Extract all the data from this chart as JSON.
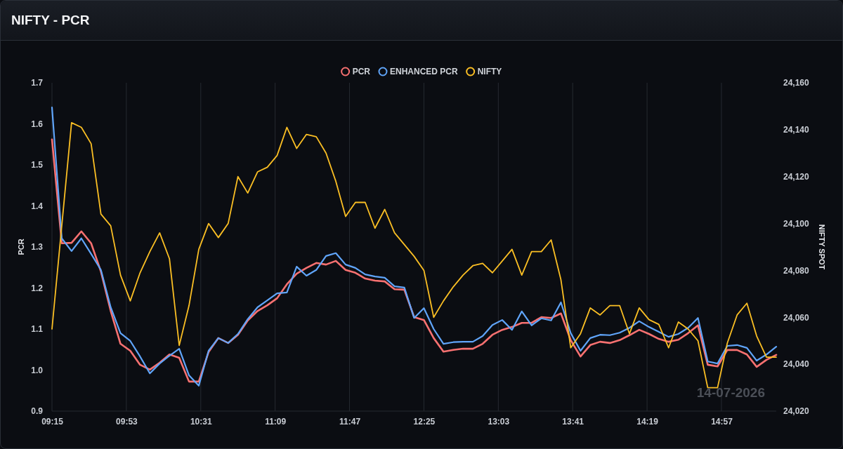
{
  "chart_data": {
    "type": "line",
    "title": "NIFTY - PCR",
    "ylabel": "PCR",
    "y2label": "NIFTY SPOT",
    "legend": "top",
    "grid": "x",
    "marker": "none",
    "line_style": "solid",
    "annotations": [
      "14-07-2026"
    ],
    "x": [
      9.25,
      9.3333,
      9.4167,
      9.5,
      9.5833,
      9.6667,
      9.75,
      9.8333,
      9.9167,
      10,
      10.0833,
      10.1667,
      10.25,
      10.3333,
      10.4167,
      10.5,
      10.5833,
      10.6667,
      10.75,
      10.8333,
      10.9167,
      11,
      11.0833,
      11.1667,
      11.25,
      11.3333,
      11.4167,
      11.5,
      11.5833,
      11.6667,
      11.75,
      11.8333,
      11.9167,
      12,
      12.0833,
      12.1667,
      12.25,
      12.3333,
      12.4167,
      12.5,
      12.5833,
      12.6667,
      12.75,
      12.8333,
      12.9167,
      13,
      13.0833,
      13.1667,
      13.25,
      13.3333,
      13.4167,
      13.5,
      13.5833,
      13.6667,
      13.75,
      13.8333,
      13.9167,
      14,
      14.0833,
      14.1667,
      14.25,
      14.3333,
      14.4167,
      14.5,
      14.5833,
      14.6667,
      14.75,
      14.8333,
      14.9167,
      15,
      15.0833,
      15.1667,
      15.25,
      15.3333,
      15.4167
    ],
    "xlim": [
      9.25,
      15.4167
    ],
    "xticks": [
      {
        "value": 9.25,
        "label": "09:15"
      },
      {
        "value": 9.8833,
        "label": "09:53"
      },
      {
        "value": 10.5167,
        "label": "10:31"
      },
      {
        "value": 11.15,
        "label": "11:09"
      },
      {
        "value": 11.7833,
        "label": "11:47"
      },
      {
        "value": 12.4167,
        "label": "12:25"
      },
      {
        "value": 13.05,
        "label": "13:03"
      },
      {
        "value": 13.6833,
        "label": "13:41"
      },
      {
        "value": 14.3167,
        "label": "14:19"
      },
      {
        "value": 14.95,
        "label": "14:57"
      }
    ],
    "ylim": [
      0.9,
      1.7
    ],
    "yticks": [
      0.9,
      {
        "value": 1,
        "label": "1.0"
      },
      1.1,
      1.2,
      1.3,
      1.4,
      1.5,
      1.6,
      1.7
    ],
    "y2lim": [
      24020,
      24160
    ],
    "y2ticks": [
      {
        "value": 24020,
        "label": "24,020"
      },
      {
        "value": 24040,
        "label": "24,040"
      },
      {
        "value": 24060,
        "label": "24,060"
      },
      {
        "value": 24080,
        "label": "24,080"
      },
      {
        "value": 24100,
        "label": "24,100"
      },
      {
        "value": 24120,
        "label": "24,120"
      },
      {
        "value": 24140,
        "label": "24,140"
      },
      {
        "value": 24160,
        "label": "24,160"
      }
    ],
    "series": [
      {
        "name": "PCR",
        "color": "#f87171",
        "values": [
          1.562,
          1.309,
          1.31,
          1.338,
          1.309,
          1.24,
          1.144,
          1.064,
          1.047,
          1.013,
          1.001,
          1.018,
          1.038,
          1.03,
          0.972,
          0.972,
          1.044,
          1.078,
          1.066,
          1.086,
          1.121,
          1.144,
          1.158,
          1.175,
          1.209,
          1.235,
          1.249,
          1.261,
          1.257,
          1.266,
          1.244,
          1.237,
          1.223,
          1.218,
          1.216,
          1.197,
          1.196,
          1.129,
          1.122,
          1.078,
          1.045,
          1.049,
          1.052,
          1.052,
          1.064,
          1.086,
          1.098,
          1.105,
          1.115,
          1.115,
          1.129,
          1.127,
          1.138,
          1.073,
          1.033,
          1.061,
          1.069,
          1.066,
          1.073,
          1.085,
          1.098,
          1.088,
          1.076,
          1.069,
          1.074,
          1.09,
          1.109,
          1.013,
          1.009,
          1.049,
          1.049,
          1.038,
          1.008,
          1.025,
          1.037
        ]
      },
      {
        "name": "ENHANCED PCR",
        "color": "#60a5fa",
        "values": [
          1.64,
          1.321,
          1.29,
          1.321,
          1.283,
          1.244,
          1.153,
          1.09,
          1.071,
          1.033,
          0.992,
          1.016,
          1.035,
          1.052,
          0.987,
          0.962,
          1.047,
          1.078,
          1.066,
          1.088,
          1.124,
          1.153,
          1.17,
          1.187,
          1.189,
          1.252,
          1.23,
          1.244,
          1.278,
          1.285,
          1.257,
          1.249,
          1.233,
          1.228,
          1.225,
          1.204,
          1.201,
          1.127,
          1.151,
          1.1,
          1.064,
          1.068,
          1.069,
          1.069,
          1.083,
          1.11,
          1.122,
          1.098,
          1.143,
          1.109,
          1.126,
          1.121,
          1.165,
          1.09,
          1.047,
          1.078,
          1.086,
          1.085,
          1.091,
          1.103,
          1.119,
          1.105,
          1.093,
          1.081,
          1.088,
          1.103,
          1.127,
          1.021,
          1.016,
          1.059,
          1.061,
          1.054,
          1.023,
          1.038,
          1.057
        ]
      },
      {
        "name": "NIFTY",
        "color": "#fbbf24",
        "axis": "y2",
        "values": [
          24055,
          24099,
          24143,
          24141,
          24134,
          24104,
          24099,
          24078,
          24067,
          24079,
          24088,
          24096,
          24085,
          24048,
          24065,
          24089,
          24100,
          24094,
          24100,
          24120,
          24113,
          24122,
          24124,
          24129,
          24141,
          24132,
          24138,
          24137,
          24130,
          24118,
          24103,
          24109,
          24109,
          24098,
          24106,
          24096,
          24091,
          24086,
          24080,
          24060,
          24067,
          24073,
          24078,
          24082,
          24083,
          24079,
          24084,
          24089,
          24078,
          24088,
          24088,
          24093,
          24076,
          24047,
          24053,
          24064,
          24061,
          24065,
          24065,
          24053,
          24064,
          24059,
          24057,
          24047,
          24058,
          24055,
          24050,
          24030,
          24030,
          24049,
          24061,
          24066,
          24052,
          24043,
          24043
        ]
      }
    ]
  }
}
